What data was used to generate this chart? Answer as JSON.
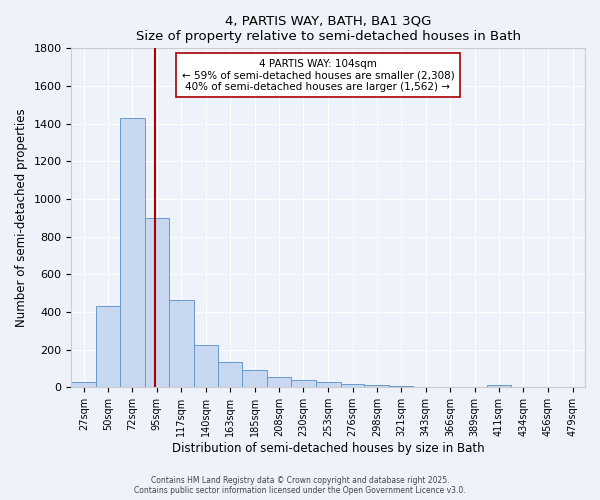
{
  "title": "4, PARTIS WAY, BATH, BA1 3QG",
  "subtitle": "Size of property relative to semi-detached houses in Bath",
  "xlabel": "Distribution of semi-detached houses by size in Bath",
  "ylabel": "Number of semi-detached properties",
  "bar_color": "#c8d8f0",
  "bar_edge_color": "#6699cc",
  "background_color": "#eef2fa",
  "grid_color": "#ffffff",
  "bin_labels": [
    "27sqm",
    "50sqm",
    "72sqm",
    "95sqm",
    "117sqm",
    "140sqm",
    "163sqm",
    "185sqm",
    "208sqm",
    "230sqm",
    "253sqm",
    "276sqm",
    "298sqm",
    "321sqm",
    "343sqm",
    "366sqm",
    "389sqm",
    "411sqm",
    "434sqm",
    "456sqm",
    "479sqm"
  ],
  "bar_heights": [
    30,
    430,
    1430,
    900,
    465,
    225,
    135,
    90,
    55,
    40,
    30,
    20,
    10,
    5,
    3,
    2,
    1,
    15,
    0,
    0,
    0
  ],
  "ylim": [
    0,
    1800
  ],
  "yticks": [
    0,
    200,
    400,
    600,
    800,
    1000,
    1200,
    1400,
    1600,
    1800
  ],
  "property_line_x": 104,
  "property_line_color": "#aa0000",
  "annotation_title": "4 PARTIS WAY: 104sqm",
  "annotation_line1": "← 59% of semi-detached houses are smaller (2,308)",
  "annotation_line2": "40% of semi-detached houses are larger (1,562) →",
  "annotation_box_color": "#ffffff",
  "annotation_box_edge": "#aa0000",
  "footer1": "Contains HM Land Registry data © Crown copyright and database right 2025.",
  "footer2": "Contains public sector information licensed under the Open Government Licence v3.0.",
  "bin_edges": [
    27,
    50,
    72,
    95,
    117,
    140,
    163,
    185,
    208,
    230,
    253,
    276,
    298,
    321,
    343,
    366,
    389,
    411,
    434,
    456,
    479
  ]
}
